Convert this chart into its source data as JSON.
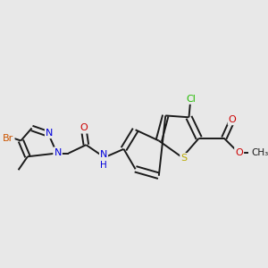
{
  "bg": "#e8e8e8",
  "bond_color": "#1a1a1a",
  "fig_width": 3.0,
  "fig_height": 3.0,
  "dpi": 100,
  "colors": {
    "Br": "#cc5500",
    "N": "#0000dd",
    "O": "#cc0000",
    "S": "#bbaa00",
    "Cl": "#22bb00",
    "C": "#1a1a1a"
  },
  "lw": 1.4,
  "fs": 7.5
}
